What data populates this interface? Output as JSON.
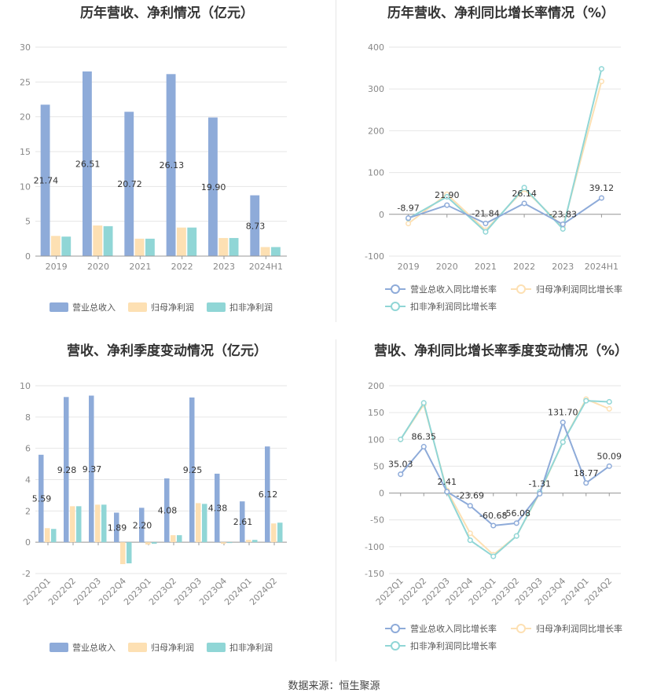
{
  "colors": {
    "revenue": "#8eabd9",
    "net_profit": "#fde0b3",
    "deducted_profit": "#90d6d6",
    "grid": "#e6e6e6",
    "axis_text": "#888888",
    "label_text": "#333333"
  },
  "footer": "数据来源：恒生聚源",
  "chart_data": [
    {
      "id": "annual_bar",
      "type": "bar",
      "title": "历年营收、净利情况（亿元）",
      "categories": [
        "2019",
        "2020",
        "2021",
        "2022",
        "2023",
        "2024H1"
      ],
      "ylim": [
        0,
        30
      ],
      "yticks": [
        0,
        5,
        10,
        15,
        20,
        25,
        30
      ],
      "series": [
        {
          "name": "营业总收入",
          "values": [
            21.74,
            26.51,
            20.72,
            26.13,
            19.9,
            8.73
          ],
          "labels": [
            "21.74",
            "26.51",
            "20.72",
            "26.13",
            "19.90",
            "8.73"
          ]
        },
        {
          "name": "归母净利润",
          "values": [
            2.9,
            4.4,
            2.5,
            4.1,
            2.6,
            1.3
          ]
        },
        {
          "name": "扣非净利润",
          "values": [
            2.8,
            4.3,
            2.5,
            4.1,
            2.6,
            1.3
          ]
        }
      ],
      "legend": "bottom"
    },
    {
      "id": "annual_growth",
      "type": "line",
      "title": "历年营收、净利同比增长率情况（%）",
      "categories": [
        "2019",
        "2020",
        "2021",
        "2022",
        "2023",
        "2024H1"
      ],
      "ylim": [
        -100,
        400
      ],
      "yticks": [
        -100,
        0,
        100,
        200,
        300,
        400
      ],
      "series": [
        {
          "name": "营业总收入同比增长率",
          "values": [
            -8.97,
            21.9,
            -21.84,
            26.14,
            -23.83,
            39.12
          ],
          "labels": [
            "-8.97",
            "21.90",
            "-21.84",
            "26.14",
            "-23.83",
            "39.12"
          ]
        },
        {
          "name": "归母净利润同比增长率",
          "values": [
            -22,
            48,
            -38,
            60,
            -30,
            318
          ]
        },
        {
          "name": "扣非净利润同比增长率",
          "values": [
            -10,
            42,
            -42,
            64,
            -35,
            348
          ]
        }
      ],
      "legend": "bottom"
    },
    {
      "id": "quarterly_bar",
      "type": "bar",
      "title": "营收、净利季度变动情况（亿元）",
      "categories": [
        "2022Q1",
        "2022Q2",
        "2022Q3",
        "2022Q4",
        "2023Q1",
        "2023Q2",
        "2023Q3",
        "2023Q4",
        "2024Q1",
        "2024Q2"
      ],
      "ylim": [
        -2,
        10
      ],
      "yticks": [
        -2,
        0,
        2,
        4,
        6,
        8,
        10
      ],
      "series": [
        {
          "name": "营业总收入",
          "values": [
            5.59,
            9.28,
            9.37,
            1.89,
            2.2,
            4.08,
            9.25,
            4.38,
            2.61,
            6.12
          ],
          "labels": [
            "5.59",
            "9.28",
            "9.37",
            "1.89",
            "2.20",
            "4.08",
            "9.25",
            "4.38",
            "2.61",
            "6.12"
          ]
        },
        {
          "name": "归母净利润",
          "values": [
            0.9,
            2.3,
            2.4,
            -1.4,
            -0.15,
            0.45,
            2.5,
            -0.1,
            0.15,
            1.2
          ]
        },
        {
          "name": "扣非净利润",
          "values": [
            0.85,
            2.3,
            2.4,
            -1.35,
            -0.1,
            0.45,
            2.45,
            -0.05,
            0.15,
            1.25
          ]
        }
      ],
      "legend": "bottom"
    },
    {
      "id": "quarterly_growth",
      "type": "line",
      "title": "营收、净利同比增长率季度变动情况（%）",
      "categories": [
        "2022Q1",
        "2022Q2",
        "2022Q3",
        "2022Q4",
        "2023Q1",
        "2023Q2",
        "2023Q3",
        "2023Q4",
        "2024Q1",
        "2024Q2"
      ],
      "ylim": [
        -150,
        200
      ],
      "yticks": [
        -150,
        -100,
        -50,
        0,
        50,
        100,
        150,
        200
      ],
      "series": [
        {
          "name": "营业总收入同比增长率",
          "values": [
            35.03,
            86.35,
            2.41,
            -23.69,
            -60.68,
            -56.08,
            -1.31,
            131.7,
            18.77,
            50.09
          ],
          "labels": [
            "35.03",
            "86.35",
            "2.41",
            "-23.69",
            "-60.68",
            "-56.08",
            "-1.31",
            "131.70",
            "18.77",
            "50.09"
          ]
        },
        {
          "name": "归母净利润同比增长率",
          "values": [
            100,
            165,
            5,
            -75,
            -115,
            -80,
            0,
            95,
            175,
            157
          ]
        },
        {
          "name": "扣非净利润同比增长率",
          "values": [
            100,
            168,
            2,
            -88,
            -118,
            -80,
            2,
            95,
            172,
            170
          ]
        }
      ],
      "legend": "bottom"
    }
  ]
}
